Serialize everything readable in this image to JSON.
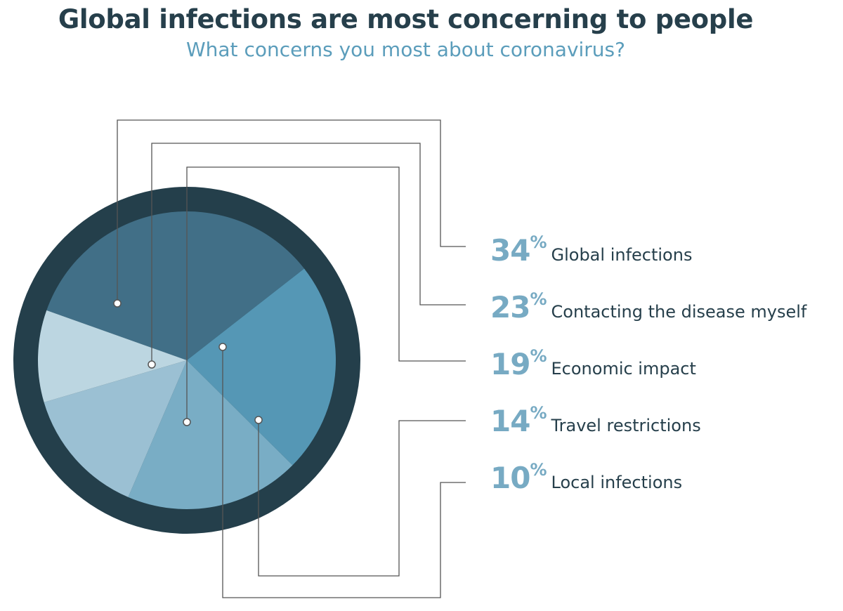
{
  "chart_data": {
    "type": "pie",
    "title": "Global infections are most concerning to people",
    "subtitle": "What concerns you most about coronavirus?",
    "slices": [
      {
        "label": "Global infections",
        "value": 34,
        "color": "#416f87"
      },
      {
        "label": "Contacting the disease myself",
        "value": 23,
        "color": "#5597b5"
      },
      {
        "label": "Economic impact",
        "value": 19,
        "color": "#79adc5"
      },
      {
        "label": "Travel restrictions",
        "value": 14,
        "color": "#9bc0d3"
      },
      {
        "label": "Local infections",
        "value": 10,
        "color": "#bcd6e1"
      }
    ],
    "unit": "%",
    "ring_color": "#243f4b"
  }
}
